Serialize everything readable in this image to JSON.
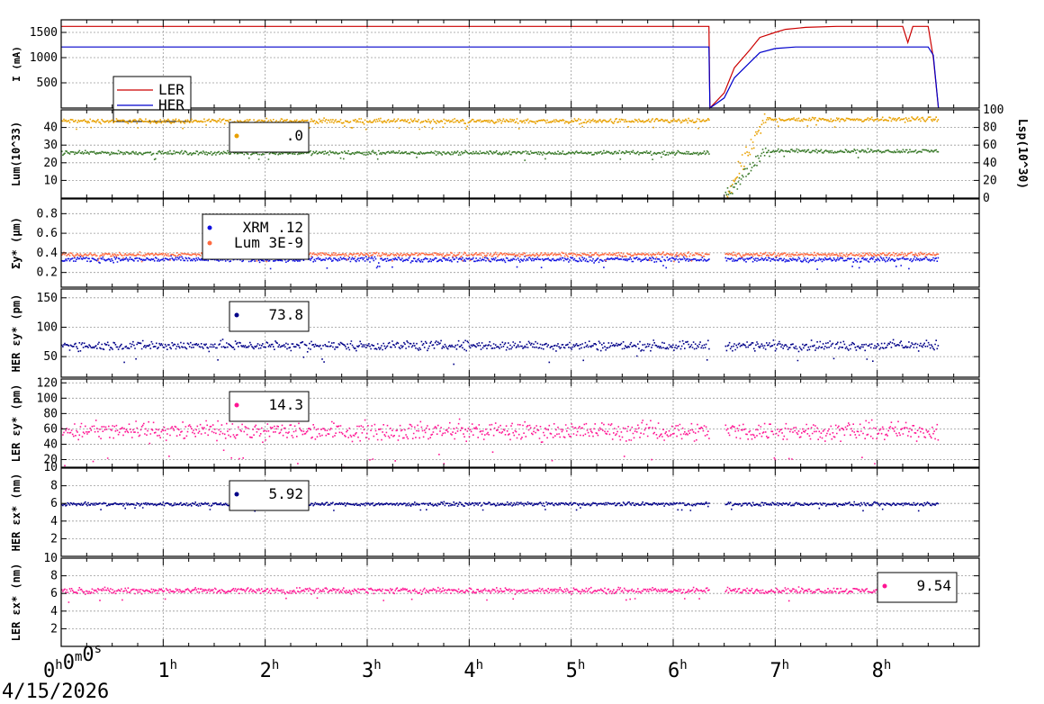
{
  "date": "4/15/2026",
  "time_axis": {
    "min_h": 0,
    "max_h": 9.0,
    "labels": [
      {
        "h": 0,
        "text": "0",
        "sup": "h",
        "text2": "0",
        "sup2": "m",
        "text3": "0",
        "sup3": "s"
      },
      {
        "h": 1,
        "text": "1",
        "sup": "h"
      },
      {
        "h": 2,
        "text": "2",
        "sup": "h"
      },
      {
        "h": 3,
        "text": "3",
        "sup": "h"
      },
      {
        "h": 4,
        "text": "4",
        "sup": "h"
      },
      {
        "h": 5,
        "text": "5",
        "sup": "h"
      },
      {
        "h": 6,
        "text": "6",
        "sup": "h"
      },
      {
        "h": 7,
        "text": "7",
        "sup": "h"
      },
      {
        "h": 8,
        "text": "8",
        "sup": "h"
      }
    ]
  },
  "colors": {
    "ler": "#cc0000",
    "her": "#0000cc",
    "lum_orange": "#e8a000",
    "lum_green": "#3a7a2a",
    "xrm_blue": "#1010e0",
    "lum_salmon": "#ff6a40",
    "navy": "#000088",
    "pink": "#ff1493"
  },
  "chart_data": [
    {
      "type": "line",
      "id": "current",
      "ylabel": "I (mA)",
      "ylim": [
        0,
        1750
      ],
      "yticks": [
        500,
        1000,
        1500
      ],
      "grid": true,
      "legend": {
        "placement": "bottom-left",
        "entries": [
          {
            "name": "LER",
            "color": "#cc0000"
          },
          {
            "name": "HER",
            "color": "#0000cc"
          }
        ]
      },
      "series": [
        {
          "name": "LER",
          "color": "#cc0000",
          "x_hours": [
            0,
            6.35,
            6.36,
            6.5,
            6.6,
            6.75,
            6.85,
            7.0,
            7.1,
            7.3,
            7.6,
            8.0,
            8.25,
            8.3,
            8.35,
            8.5,
            8.55,
            8.6
          ],
          "y": [
            1620,
            1620,
            0,
            300,
            800,
            1150,
            1400,
            1500,
            1560,
            1600,
            1620,
            1620,
            1620,
            1300,
            1620,
            1620,
            1000,
            0
          ]
        },
        {
          "name": "HER",
          "color": "#0000cc",
          "x_hours": [
            0,
            6.35,
            6.36,
            6.5,
            6.6,
            6.75,
            6.85,
            7.0,
            7.2,
            8.5,
            8.55,
            8.6
          ],
          "y": [
            1210,
            1210,
            0,
            200,
            600,
            900,
            1100,
            1180,
            1210,
            1210,
            1050,
            0
          ]
        }
      ]
    },
    {
      "type": "scatter",
      "id": "luminosity",
      "ylabel": "Lum(10^33)",
      "ylabel_right": "Lsp(10^30)",
      "ylim": [
        0,
        50
      ],
      "yticks": [
        10,
        20,
        30,
        40
      ],
      "ylim_right": [
        0,
        100
      ],
      "yticks_right": [
        0,
        20,
        40,
        60,
        80,
        100
      ],
      "grid": true,
      "legend": {
        "entries": [
          {
            "name": "",
            "value": ".0",
            "color": "#e8a000"
          }
        ]
      },
      "series": [
        {
          "name": "",
          "color": "#e8a000",
          "level": 44,
          "noise": 1.0,
          "gap": [
            6.35,
            6.5
          ],
          "after_level": 45,
          "ramp": [
            6.5,
            6.9,
            0,
            45
          ]
        },
        {
          "name": "",
          "color": "#3a7a2a",
          "level": 26,
          "noise": 0.8,
          "gap": [
            6.35,
            6.5
          ],
          "after_level": 27,
          "ramp": [
            6.5,
            6.9,
            0,
            28
          ]
        }
      ]
    },
    {
      "type": "scatter",
      "id": "sigma_y",
      "ylabel": "Σy* (µm)",
      "ylim": [
        0.05,
        0.95
      ],
      "yticks": [
        0.2,
        0.4,
        0.6,
        0.8
      ],
      "grid": true,
      "legend": {
        "entries": [
          {
            "name": "XRM",
            "value": ".12",
            "color": "#1010e0"
          },
          {
            "name": "Lum",
            "value": "3E-9",
            "color": "#ff6a40"
          }
        ]
      },
      "series": [
        {
          "name": "XRM",
          "color": "#1010e0",
          "level": 0.34,
          "noise": 0.02
        },
        {
          "name": "Lum",
          "color": "#ff6a40",
          "level": 0.39,
          "noise": 0.015
        }
      ]
    },
    {
      "type": "scatter",
      "id": "her_eps_y",
      "ylabel": "HER εy* (pm)",
      "ylim": [
        15,
        165
      ],
      "yticks": [
        50,
        100,
        150
      ],
      "grid": true,
      "legend": {
        "entries": [
          {
            "name": "",
            "value": "73.8",
            "color": "#000088"
          }
        ]
      },
      "series": [
        {
          "name": "",
          "color": "#000088",
          "level": 70,
          "noise": 6
        }
      ]
    },
    {
      "type": "scatter",
      "id": "ler_eps_y",
      "ylabel": "LER εy* (pm)",
      "ylim": [
        10,
        125
      ],
      "yticks": [
        10,
        20,
        40,
        60,
        80,
        100,
        120
      ],
      "grid": true,
      "legend": {
        "entries": [
          {
            "name": "",
            "value": "14.3",
            "color": "#ff1493"
          }
        ]
      },
      "series": [
        {
          "name": "",
          "color": "#ff1493",
          "level": 58,
          "noise": 9
        }
      ]
    },
    {
      "type": "scatter",
      "id": "her_eps_x",
      "ylabel": "HER εx* (nm)",
      "ylim": [
        0,
        10
      ],
      "yticks": [
        2,
        4,
        6,
        8
      ],
      "grid": true,
      "legend": {
        "entries": [
          {
            "name": "",
            "value": "5.92",
            "color": "#000088"
          }
        ]
      },
      "series": [
        {
          "name": "",
          "color": "#000088",
          "level": 6.0,
          "noise": 0.15
        }
      ]
    },
    {
      "type": "scatter",
      "id": "ler_eps_x",
      "ylabel": "LER εx* (nm)",
      "ylim": [
        0,
        10
      ],
      "yticks": [
        2,
        4,
        6,
        8,
        10
      ],
      "grid": true,
      "legend": {
        "placement": "right",
        "entries": [
          {
            "name": "",
            "value": "9.54",
            "color": "#ff1493"
          }
        ]
      },
      "series": [
        {
          "name": "",
          "color": "#ff1493",
          "level": 6.4,
          "noise": 0.25
        }
      ]
    }
  ]
}
